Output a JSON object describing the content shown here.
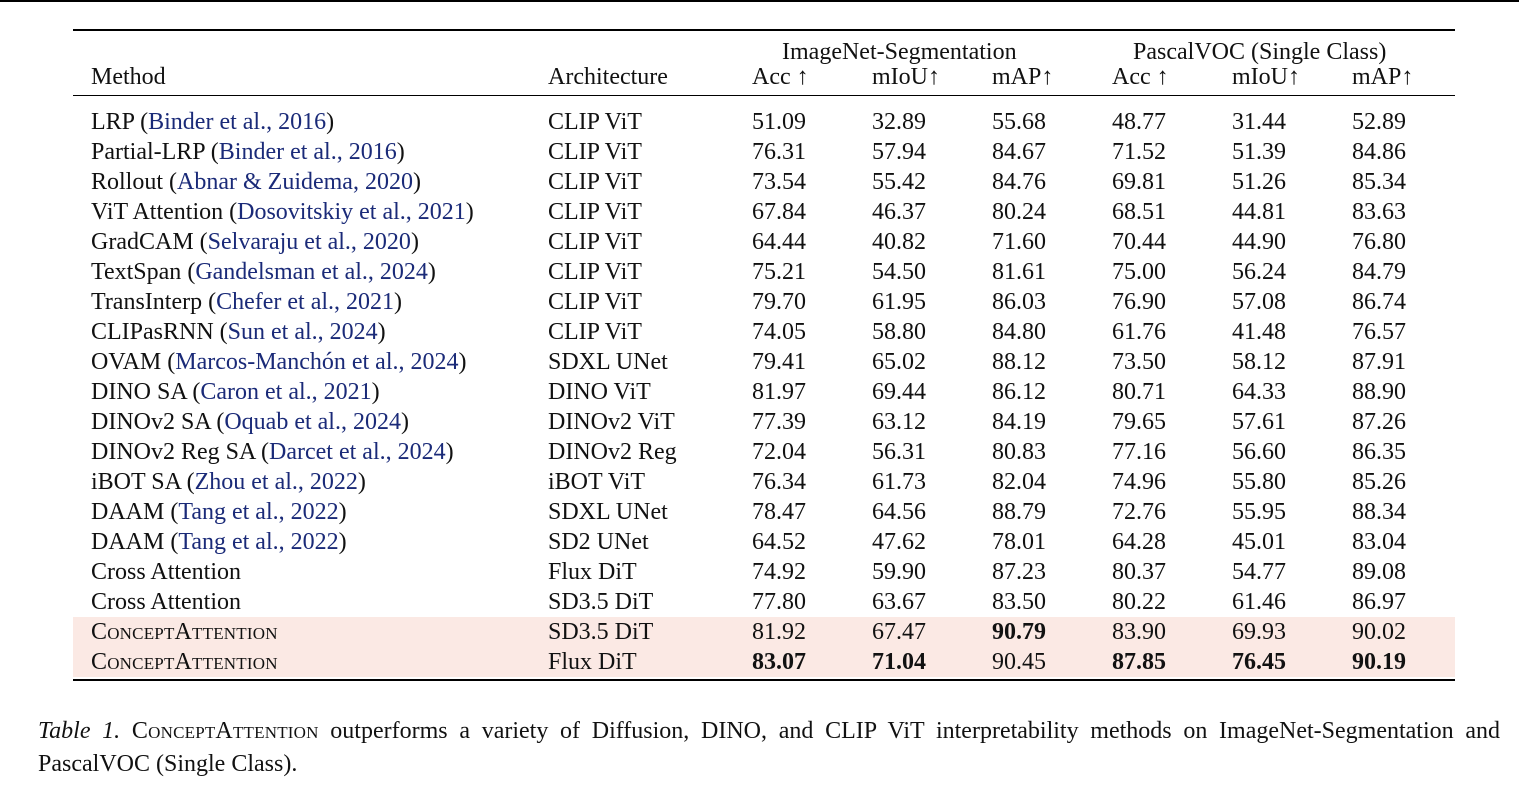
{
  "table": {
    "group_headers": [
      "ImageNet-Segmentation",
      "PascalVOC (Single Class)"
    ],
    "columns": [
      "Method",
      "Architecture",
      "Acc ↑",
      "mIoU↑",
      "mAP↑",
      "Acc ↑",
      "mIoU↑",
      "mAP↑"
    ],
    "rows": [
      {
        "method": "LRP",
        "cite": "Binder et al., 2016",
        "arch": "CLIP ViT",
        "values": [
          "51.09",
          "32.89",
          "55.68",
          "48.77",
          "31.44",
          "52.89"
        ],
        "bold": [
          false,
          false,
          false,
          false,
          false,
          false
        ],
        "highlight": false,
        "small_caps": false
      },
      {
        "method": "Partial-LRP",
        "cite": "Binder et al., 2016",
        "arch": "CLIP ViT",
        "values": [
          "76.31",
          "57.94",
          "84.67",
          "71.52",
          "51.39",
          "84.86"
        ],
        "bold": [
          false,
          false,
          false,
          false,
          false,
          false
        ],
        "highlight": false,
        "small_caps": false
      },
      {
        "method": "Rollout",
        "cite": "Abnar & Zuidema, 2020",
        "arch": "CLIP ViT",
        "values": [
          "73.54",
          "55.42",
          "84.76",
          "69.81",
          "51.26",
          "85.34"
        ],
        "bold": [
          false,
          false,
          false,
          false,
          false,
          false
        ],
        "highlight": false,
        "small_caps": false
      },
      {
        "method": "ViT Attention",
        "cite": "Dosovitskiy et al., 2021",
        "arch": "CLIP ViT",
        "values": [
          "67.84",
          "46.37",
          "80.24",
          "68.51",
          "44.81",
          "83.63"
        ],
        "bold": [
          false,
          false,
          false,
          false,
          false,
          false
        ],
        "highlight": false,
        "small_caps": false
      },
      {
        "method": "GradCAM",
        "cite": "Selvaraju et al., 2020",
        "arch": "CLIP ViT",
        "values": [
          "64.44",
          "40.82",
          "71.60",
          "70.44",
          "44.90",
          "76.80"
        ],
        "bold": [
          false,
          false,
          false,
          false,
          false,
          false
        ],
        "highlight": false,
        "small_caps": false
      },
      {
        "method": "TextSpan",
        "cite": "Gandelsman et al., 2024",
        "arch": "CLIP ViT",
        "values": [
          "75.21",
          "54.50",
          "81.61",
          "75.00",
          "56.24",
          "84.79"
        ],
        "bold": [
          false,
          false,
          false,
          false,
          false,
          false
        ],
        "highlight": false,
        "small_caps": false
      },
      {
        "method": "TransInterp",
        "cite": "Chefer et al., 2021",
        "arch": "CLIP ViT",
        "values": [
          "79.70",
          "61.95",
          "86.03",
          "76.90",
          "57.08",
          "86.74"
        ],
        "bold": [
          false,
          false,
          false,
          false,
          false,
          false
        ],
        "highlight": false,
        "small_caps": false
      },
      {
        "method": "CLIPasRNN",
        "cite": "Sun et al., 2024",
        "arch": "CLIP ViT",
        "values": [
          "74.05",
          "58.80",
          "84.80",
          "61.76",
          "41.48",
          "76.57"
        ],
        "bold": [
          false,
          false,
          false,
          false,
          false,
          false
        ],
        "highlight": false,
        "small_caps": false
      },
      {
        "method": "OVAM",
        "cite": "Marcos-Manchón et al., 2024",
        "arch": "SDXL UNet",
        "values": [
          "79.41",
          "65.02",
          "88.12",
          "73.50",
          "58.12",
          "87.91"
        ],
        "bold": [
          false,
          false,
          false,
          false,
          false,
          false
        ],
        "highlight": false,
        "small_caps": false
      },
      {
        "method": "DINO SA",
        "cite": "Caron et al., 2021",
        "arch": "DINO ViT",
        "values": [
          "81.97",
          "69.44",
          "86.12",
          "80.71",
          "64.33",
          "88.90"
        ],
        "bold": [
          false,
          false,
          false,
          false,
          false,
          false
        ],
        "highlight": false,
        "small_caps": false
      },
      {
        "method": "DINOv2 SA",
        "cite": "Oquab et al., 2024",
        "arch": "DINOv2 ViT",
        "values": [
          "77.39",
          "63.12",
          "84.19",
          "79.65",
          "57.61",
          "87.26"
        ],
        "bold": [
          false,
          false,
          false,
          false,
          false,
          false
        ],
        "highlight": false,
        "small_caps": false
      },
      {
        "method": "DINOv2 Reg SA",
        "cite": "Darcet et al., 2024",
        "arch": "DINOv2 Reg",
        "values": [
          "72.04",
          "56.31",
          "80.83",
          "77.16",
          "56.60",
          "86.35"
        ],
        "bold": [
          false,
          false,
          false,
          false,
          false,
          false
        ],
        "highlight": false,
        "small_caps": false
      },
      {
        "method": "iBOT SA",
        "cite": "Zhou et al., 2022",
        "arch": "iBOT ViT",
        "values": [
          "76.34",
          "61.73",
          "82.04",
          "74.96",
          "55.80",
          "85.26"
        ],
        "bold": [
          false,
          false,
          false,
          false,
          false,
          false
        ],
        "highlight": false,
        "small_caps": false
      },
      {
        "method": "DAAM",
        "cite": "Tang et al., 2022",
        "arch": "SDXL UNet",
        "values": [
          "78.47",
          "64.56",
          "88.79",
          "72.76",
          "55.95",
          "88.34"
        ],
        "bold": [
          false,
          false,
          false,
          false,
          false,
          false
        ],
        "highlight": false,
        "small_caps": false
      },
      {
        "method": "DAAM",
        "cite": "Tang et al., 2022",
        "arch": "SD2 UNet",
        "values": [
          "64.52",
          "47.62",
          "78.01",
          "64.28",
          "45.01",
          "83.04"
        ],
        "bold": [
          false,
          false,
          false,
          false,
          false,
          false
        ],
        "highlight": false,
        "small_caps": false
      },
      {
        "method": "Cross Attention",
        "cite": "",
        "arch": "Flux DiT",
        "values": [
          "74.92",
          "59.90",
          "87.23",
          "80.37",
          "54.77",
          "89.08"
        ],
        "bold": [
          false,
          false,
          false,
          false,
          false,
          false
        ],
        "highlight": false,
        "small_caps": false
      },
      {
        "method": "Cross Attention",
        "cite": "",
        "arch": "SD3.5 DiT",
        "values": [
          "77.80",
          "63.67",
          "83.50",
          "80.22",
          "61.46",
          "86.97"
        ],
        "bold": [
          false,
          false,
          false,
          false,
          false,
          false
        ],
        "highlight": false,
        "small_caps": false
      },
      {
        "method": "ConceptAttention",
        "cite": "",
        "arch": "SD3.5 DiT",
        "values": [
          "81.92",
          "67.47",
          "90.79",
          "83.90",
          "69.93",
          "90.02"
        ],
        "bold": [
          false,
          false,
          true,
          false,
          false,
          false
        ],
        "highlight": true,
        "small_caps": true
      },
      {
        "method": "ConceptAttention",
        "cite": "",
        "arch": "Flux DiT",
        "values": [
          "83.07",
          "71.04",
          "90.45",
          "87.85",
          "76.45",
          "90.19"
        ],
        "bold": [
          true,
          true,
          false,
          true,
          true,
          true
        ],
        "highlight": true,
        "small_caps": true
      }
    ]
  },
  "caption": {
    "label": "Table 1.",
    "method_name": "ConceptAttention",
    "text": " outperforms a variety of Diffusion, DINO, and CLIP ViT interpretability methods on ImageNet-Segmentation and PascalVOC (Single Class)."
  },
  "colors": {
    "highlight": "#fbe9e4",
    "citation": "#1a2a78"
  }
}
